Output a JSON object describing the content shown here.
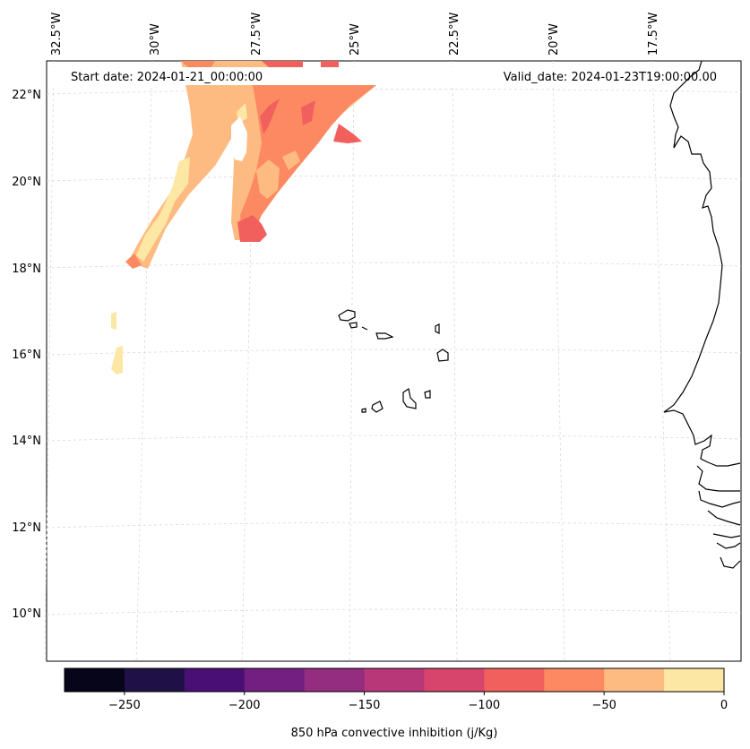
{
  "map": {
    "start_date": "Start date: 2024-01-21_00:00:00",
    "valid_date": "Valid_date: 2024-01-23T19:00:00.00",
    "longitude_labels": [
      "32.5°W",
      "30°W",
      "27.5°W",
      "25°W",
      "22.5°W",
      "20°W",
      "17.5°W"
    ],
    "latitude_labels": [
      "22°N",
      "20°N",
      "18°N",
      "16°N",
      "14°N",
      "12°N",
      "10°N"
    ]
  },
  "colorbar": {
    "label": "850 hPa convective inhibition (j/Kg)",
    "tick_labels": [
      "−250",
      "−200",
      "−150",
      "−100",
      "−50",
      "0"
    ],
    "levels": [
      -275,
      -250,
      -225,
      -200,
      -175,
      -150,
      -125,
      -100,
      -75,
      -50,
      -25,
      0
    ],
    "colors": [
      "#06051a",
      "#1f1147",
      "#4a0f75",
      "#721f81",
      "#942c80",
      "#b73779",
      "#d8456c",
      "#f1605d",
      "#fc8961",
      "#febb81",
      "#fde7a4"
    ]
  },
  "palette": {
    "coastline": "#000000",
    "gridline": "#d0d0d0"
  }
}
